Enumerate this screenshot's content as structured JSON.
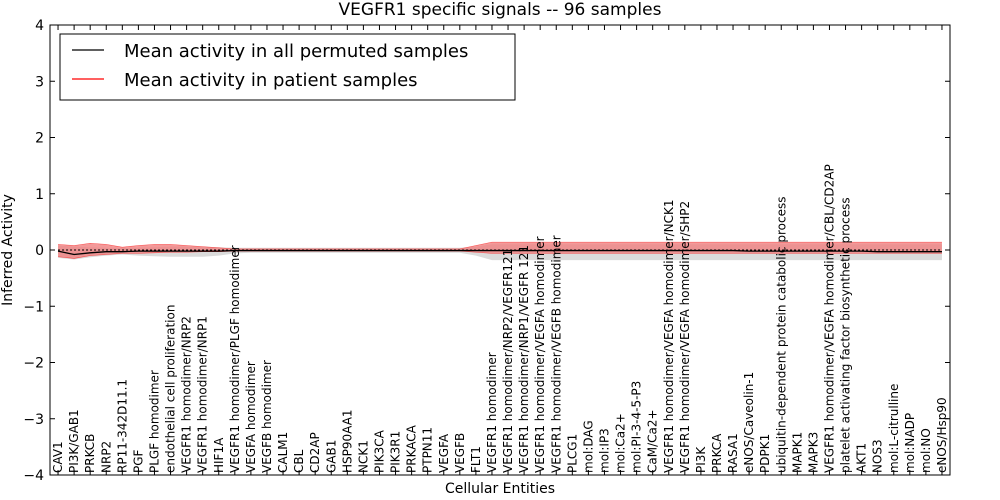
{
  "chart_data": {
    "type": "line",
    "title": "VEGFR1 specific signals -- 96 samples",
    "xlabel": "Cellular Entities",
    "ylabel": "Inferred Activity",
    "ylim": [
      -4,
      4
    ],
    "yticks": [
      -4,
      -3,
      -2,
      -1,
      0,
      1,
      2,
      3,
      4
    ],
    "ytick_labels": [
      "−4",
      "−3",
      "−2",
      "−1",
      "0",
      "1",
      "2",
      "3",
      "4"
    ],
    "grid": false,
    "legend_position": "top-left",
    "colors": {
      "permuted": "#000000",
      "patient": "#ff0000",
      "patient_band": "#f08080",
      "permuted_band": "#bdbdbd"
    },
    "categories": [
      "CAV1",
      "PI3K/GAB1",
      "PRKCB",
      "NRP2",
      "RP11-342D11.1",
      "PGF",
      "PLGF homodimer",
      "endothelial cell proliferation",
      "VEGFR1 homodimer/NRP2",
      "VEGFR1 homodimer/NRP1",
      "HIF1A",
      "VEGFR1 homodimer/PLGF homodimer",
      "VEGFA homodimer",
      "VEGFB homodimer",
      "CALM1",
      "CBL",
      "CD2AP",
      "GAB1",
      "HSP90AA1",
      "NCK1",
      "PIK3CA",
      "PIK3R1",
      "PRKACA",
      "PTPN11",
      "VEGFA",
      "VEGFB",
      "FLT1",
      "VEGFR1 homodimer",
      "VEGFR1 homodimer/NRP2/VEGFR121",
      "VEGFR1 homodimer/NRP1/VEGFR 121",
      "VEGFR1 homodimer/VEGFA homodimer",
      "VEGFR1 homodimer/VEGFB homodimer",
      "PLCG1",
      "mol:DAG",
      "mol:IP3",
      "mol:Ca2+",
      "mol:PI-3-4-5-P3",
      "CaM/Ca2+",
      "VEGFR1 homodimer/VEGFA homodimer/NCK1",
      "VEGFR1 homodimer/VEGFA homodimer/SHP2",
      "PI3K",
      "PRKCA",
      "RASA1",
      "eNOS/Caveolin-1",
      "PDPK1",
      "ubiquitin-dependent protein catabolic process",
      "MAPK1",
      "MAPK3",
      "VEGFR1 homodimer/VEGFA homodimer/CBL/CD2AP",
      "platelet activating factor biosynthetic process",
      "AKT1",
      "NOS3",
      "mol:L-citrulline",
      "mol:NADP",
      "mol:NO",
      "eNOS/Hsp90"
    ],
    "series": [
      {
        "name": "Mean activity in all permuted samples",
        "values": [
          0,
          0,
          0,
          0,
          0,
          0,
          0,
          0,
          0,
          0,
          0,
          0,
          0,
          0,
          0,
          0,
          0,
          0,
          0,
          0,
          0,
          0,
          0,
          0,
          0,
          0,
          0,
          0,
          0,
          0,
          0,
          0,
          0,
          0,
          0,
          0,
          0,
          0,
          0,
          0,
          0,
          0,
          0,
          0,
          0,
          0,
          0,
          0,
          0,
          0,
          0,
          0,
          0,
          0,
          0,
          0
        ],
        "lower": [
          -0.14,
          -0.17,
          -0.13,
          -0.1,
          -0.08,
          -0.1,
          -0.11,
          -0.12,
          -0.12,
          -0.12,
          -0.1,
          -0.06,
          -0.05,
          -0.05,
          -0.05,
          -0.05,
          -0.05,
          -0.05,
          -0.05,
          -0.05,
          -0.05,
          -0.05,
          -0.05,
          -0.05,
          -0.05,
          -0.05,
          -0.1,
          -0.18,
          -0.18,
          -0.18,
          -0.18,
          -0.18,
          -0.18,
          -0.18,
          -0.18,
          -0.18,
          -0.18,
          -0.18,
          -0.18,
          -0.18,
          -0.18,
          -0.18,
          -0.18,
          -0.18,
          -0.18,
          -0.18,
          -0.18,
          -0.18,
          -0.18,
          -0.18,
          -0.18,
          -0.18,
          -0.18,
          -0.18,
          -0.18,
          -0.18
        ],
        "upper": [
          0.08,
          0.06,
          0.05,
          0.04,
          0.04,
          0.04,
          0.05,
          0.06,
          0.06,
          0.06,
          0.05,
          0.04,
          0.04,
          0.04,
          0.04,
          0.04,
          0.04,
          0.04,
          0.04,
          0.04,
          0.04,
          0.04,
          0.04,
          0.04,
          0.04,
          0.04,
          0.06,
          0.1,
          0.1,
          0.1,
          0.1,
          0.1,
          0.1,
          0.1,
          0.1,
          0.1,
          0.1,
          0.1,
          0.1,
          0.1,
          0.1,
          0.1,
          0.1,
          0.1,
          0.1,
          0.1,
          0.1,
          0.1,
          0.1,
          0.1,
          0.1,
          0.1,
          0.1,
          0.1,
          0.1,
          0.1
        ]
      },
      {
        "name": "Mean activity in patient samples",
        "values": [
          -0.02,
          -0.08,
          -0.05,
          -0.03,
          -0.03,
          -0.02,
          -0.02,
          -0.02,
          -0.02,
          -0.02,
          -0.02,
          -0.01,
          -0.01,
          -0.01,
          -0.01,
          -0.01,
          -0.01,
          -0.01,
          -0.01,
          -0.01,
          -0.01,
          -0.01,
          -0.01,
          -0.01,
          -0.01,
          -0.01,
          -0.01,
          -0.01,
          -0.01,
          -0.01,
          -0.01,
          -0.01,
          -0.01,
          -0.01,
          -0.01,
          -0.01,
          -0.01,
          -0.01,
          -0.01,
          -0.01,
          -0.01,
          -0.01,
          -0.01,
          -0.02,
          -0.02,
          -0.02,
          -0.02,
          -0.02,
          -0.02,
          -0.02,
          -0.02,
          -0.03,
          -0.03,
          -0.03,
          -0.03,
          -0.03
        ],
        "lower": [
          -0.12,
          -0.15,
          -0.1,
          -0.08,
          -0.06,
          -0.06,
          -0.05,
          -0.04,
          -0.04,
          -0.03,
          -0.03,
          -0.02,
          -0.02,
          -0.02,
          -0.02,
          -0.02,
          -0.02,
          -0.02,
          -0.02,
          -0.02,
          -0.02,
          -0.02,
          -0.02,
          -0.02,
          -0.02,
          -0.02,
          -0.04,
          -0.06,
          -0.06,
          -0.06,
          -0.06,
          -0.06,
          -0.06,
          -0.06,
          -0.06,
          -0.06,
          -0.06,
          -0.06,
          -0.06,
          -0.06,
          -0.06,
          -0.06,
          -0.06,
          -0.06,
          -0.06,
          -0.06,
          -0.06,
          -0.06,
          -0.06,
          -0.06,
          -0.06,
          -0.06,
          -0.06,
          -0.06,
          -0.06,
          -0.06
        ],
        "upper": [
          0.1,
          0.08,
          0.12,
          0.1,
          0.05,
          0.08,
          0.1,
          0.1,
          0.08,
          0.06,
          0.04,
          0.02,
          0.02,
          0.02,
          0.02,
          0.02,
          0.02,
          0.02,
          0.02,
          0.02,
          0.02,
          0.02,
          0.02,
          0.02,
          0.02,
          0.02,
          0.08,
          0.14,
          0.14,
          0.14,
          0.14,
          0.14,
          0.14,
          0.14,
          0.14,
          0.14,
          0.14,
          0.14,
          0.14,
          0.14,
          0.14,
          0.14,
          0.14,
          0.14,
          0.14,
          0.14,
          0.14,
          0.14,
          0.14,
          0.14,
          0.14,
          0.14,
          0.14,
          0.14,
          0.14,
          0.14
        ]
      }
    ]
  }
}
